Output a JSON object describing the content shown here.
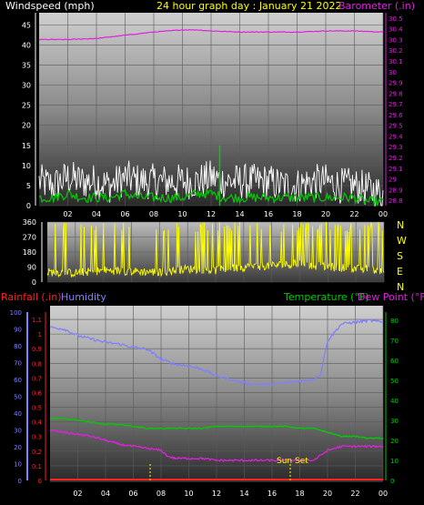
{
  "header": {
    "left_label": "Windspeed (mph)",
    "title": "24 hour graph day : January 21 2022",
    "right_label": "Barometer (.in)"
  },
  "colors": {
    "wind": "#ffffff",
    "gust": "#ffffff",
    "avg": "#00cc00",
    "barometer": "#e020e0",
    "direction": "#ffff00",
    "humidity": "#8080ff",
    "temperature": "#00cc00",
    "dewpoint": "#e020e0",
    "rainfall": "#ff2020"
  },
  "compass": [
    "N",
    "W",
    "S",
    "E",
    "N"
  ],
  "bottom_labels": {
    "rainfall": "Rainfall (.in)",
    "humidity": "Humidity",
    "temperature": "Temperature (°F)",
    "dewpoint": "Dew Point (°F)",
    "sunset": "Sun Set"
  },
  "chart_data": [
    {
      "type": "line",
      "name": "wind-barometer",
      "x_ticks": [
        "02",
        "04",
        "06",
        "08",
        "10",
        "12",
        "14",
        "16",
        "18",
        "20",
        "22",
        "00"
      ],
      "y_left_ticks": [
        0,
        5,
        10,
        15,
        20,
        25,
        30,
        35,
        40,
        45
      ],
      "y_left_range": [
        0,
        48
      ],
      "y_right_ticks": [
        "28.8",
        "28.9",
        "29",
        "29.1",
        "29.2",
        "29.3",
        "29.4",
        "29.5",
        "29.6",
        "29.7",
        "29.8",
        "29.9",
        "30",
        "30.1",
        "30.2",
        "30.3",
        "30.4",
        "30.5"
      ],
      "y_right_range": [
        28.75,
        30.55
      ],
      "series": [
        {
          "key": "barometer",
          "x": [
            0,
            2,
            4,
            6,
            8,
            10,
            11,
            12,
            14,
            16,
            18,
            20,
            22,
            24
          ],
          "values": [
            30.3,
            30.3,
            30.31,
            30.34,
            30.37,
            30.39,
            30.39,
            30.38,
            30.37,
            30.37,
            30.37,
            30.38,
            30.38,
            30.37
          ]
        },
        {
          "key": "wind",
          "x": [
            0,
            1,
            2,
            3,
            4,
            5,
            6,
            7,
            8,
            9,
            10,
            11,
            12,
            13,
            14,
            15,
            16,
            17,
            18,
            19,
            20,
            21,
            22,
            23,
            24
          ],
          "values": [
            6,
            5,
            7,
            6,
            6,
            5,
            7,
            6,
            6,
            6,
            6,
            6,
            7,
            6,
            6,
            6,
            6,
            5,
            5,
            6,
            6,
            5,
            5,
            4,
            3
          ]
        },
        {
          "key": "avg",
          "x": [
            0,
            1,
            2,
            3,
            4,
            5,
            6,
            7,
            8,
            9,
            10,
            11,
            12,
            13,
            14,
            15,
            16,
            17,
            18,
            19,
            20,
            21,
            22,
            23,
            24
          ],
          "values": [
            2,
            2,
            3,
            2,
            2,
            2,
            3,
            2,
            2,
            2,
            2,
            3,
            3,
            2,
            2,
            2,
            2,
            2,
            2,
            2,
            2,
            2,
            2,
            1,
            1
          ]
        }
      ]
    },
    {
      "type": "line",
      "name": "wind-direction",
      "y_ticks": [
        0,
        90,
        180,
        270,
        360
      ],
      "y_range": [
        0,
        360
      ],
      "series": [
        {
          "key": "direction",
          "x": [
            0,
            2,
            4,
            6,
            8,
            10,
            12,
            14,
            16,
            18,
            20,
            22,
            24
          ],
          "values": [
            60,
            55,
            70,
            65,
            60,
            80,
            70,
            90,
            100,
            110,
            90,
            80,
            70
          ]
        }
      ]
    },
    {
      "type": "line",
      "name": "temp-humidity",
      "x_ticks": [
        "02",
        "04",
        "06",
        "08",
        "10",
        "12",
        "14",
        "16",
        "18",
        "20",
        "22",
        "00"
      ],
      "y_left_ticks": [
        0,
        10,
        20,
        30,
        40,
        50,
        60,
        70,
        80,
        90,
        100
      ],
      "y_left_range": [
        0,
        100
      ],
      "y_rain_ticks": [
        "0",
        "0.1",
        "0.2",
        "0.3",
        "0.4",
        "0.5",
        "0.6",
        "0.7",
        "0.8",
        "0.9",
        "1",
        "1.1"
      ],
      "y_rain_range": [
        0,
        1.15
      ],
      "y_right_ticks": [
        0,
        10,
        20,
        30,
        40,
        50,
        60,
        70,
        80
      ],
      "y_right_range": [
        0,
        84
      ],
      "series": [
        {
          "key": "humidity",
          "x": [
            0,
            1,
            2,
            3,
            4,
            5,
            6,
            7,
            8,
            9,
            10,
            11,
            12,
            13,
            14,
            15,
            16,
            17,
            18,
            19,
            19.5,
            20,
            21,
            22,
            23,
            24
          ],
          "values": [
            91,
            90,
            86,
            84,
            82,
            81,
            79,
            78,
            72,
            69,
            68,
            66,
            62,
            60,
            58,
            57,
            57,
            58,
            59,
            60,
            63,
            83,
            93,
            94,
            95,
            94
          ]
        },
        {
          "key": "temperature",
          "x": [
            0,
            1,
            2,
            3,
            4,
            5,
            6,
            7,
            8,
            9,
            10,
            11,
            12,
            13,
            14,
            15,
            16,
            17,
            18,
            19,
            20,
            21,
            22,
            23,
            24
          ],
          "values": [
            31,
            31,
            30,
            29,
            28,
            28,
            27,
            26,
            26,
            26,
            26,
            26,
            27,
            27,
            27,
            27,
            27,
            27,
            26,
            26,
            24,
            22,
            22,
            21,
            21
          ]
        },
        {
          "key": "dewpoint",
          "x": [
            0,
            1,
            2,
            3,
            4,
            5,
            6,
            7,
            8,
            8.5,
            9,
            10,
            11,
            12,
            13,
            14,
            15,
            16,
            17,
            18,
            19,
            20,
            21,
            22,
            23,
            24
          ],
          "values": [
            25,
            24,
            23,
            22,
            20,
            18,
            17,
            16,
            15,
            12,
            11,
            11,
            11,
            10,
            10,
            10,
            10,
            10,
            10,
            10,
            10,
            15,
            17,
            17,
            17,
            17
          ]
        },
        {
          "key": "rainfall",
          "x": [
            0,
            24
          ],
          "values": [
            0,
            0
          ]
        }
      ]
    }
  ]
}
